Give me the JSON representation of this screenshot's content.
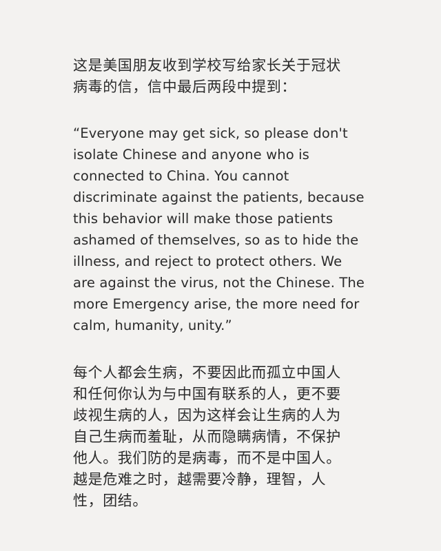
{
  "intro": {
    "lines": [
      "这是美国朋友收到学校写给家长关于冠状",
      "病毒的信，信中最后两段中提到："
    ]
  },
  "quote_en": {
    "lines": [
      "“Everyone may get sick, so please don't",
      "isolate Chinese and anyone who is",
      "connected to China. You cannot",
      "discriminate against the patients, because",
      "this behavior will make those patients",
      "ashamed of themselves, so as to hide the",
      "illness, and reject to protect others. We",
      "are against the virus, not the Chinese. The",
      "more Emergency arise, the more need for",
      "calm, humanity, unity.”"
    ]
  },
  "translation_cn": {
    "lines": [
      "每个人都会生病，不要因此而孤立中国人",
      "和任何你认为与中国有联系的人，更不要",
      "歧视生病的人，因为这样会让生病的人为",
      "自己生病而羞耻，从而隐瞒病情，不保护",
      "他人。我们防的是病毒，而不是中国人。",
      "越是危难之时，越需要冷静，理智，人",
      "性，团结。"
    ]
  }
}
